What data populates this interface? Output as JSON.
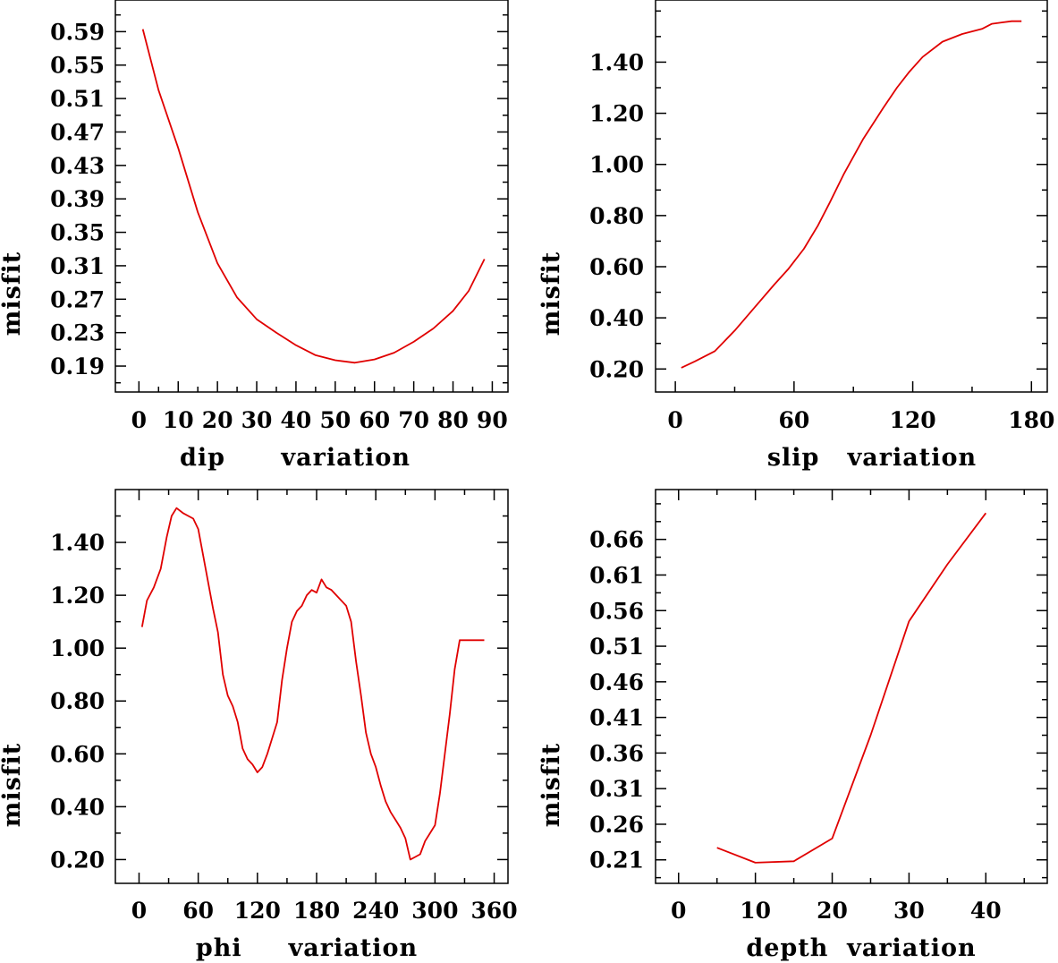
{
  "chart_data": [
    {
      "type": "line",
      "xlabel": "dip      variation",
      "ylabel": "misfit",
      "xlim": [
        -6,
        94
      ],
      "ylim": [
        0.159,
        0.63
      ],
      "xticks": [
        0,
        10,
        20,
        30,
        40,
        50,
        60,
        70,
        80,
        90
      ],
      "xtick_labels": [
        "0",
        "10",
        "20",
        "30",
        "40",
        "50",
        "60",
        "70",
        "80",
        "90"
      ],
      "yticks": [
        0.19,
        0.23,
        0.27,
        0.31,
        0.35,
        0.39,
        0.43,
        0.47,
        0.51,
        0.55,
        0.59
      ],
      "ytick_labels": [
        "0.19",
        "0.23",
        "0.27",
        "0.31",
        "0.35",
        "0.39",
        "0.43",
        "0.47",
        "0.51",
        "0.55",
        "0.59"
      ],
      "x": [
        1,
        5,
        10,
        15,
        20,
        25,
        30,
        35,
        40,
        45,
        50,
        55,
        60,
        65,
        70,
        75,
        80,
        84,
        88
      ],
      "y": [
        0.593,
        0.52,
        0.451,
        0.374,
        0.313,
        0.272,
        0.246,
        0.23,
        0.215,
        0.203,
        0.197,
        0.194,
        0.198,
        0.206,
        0.219,
        0.235,
        0.256,
        0.28,
        0.318
      ]
    },
    {
      "type": "line",
      "xlabel": "slip   variation",
      "ylabel": "misfit",
      "xlim": [
        -10,
        188
      ],
      "ylim": [
        0.11,
        1.65
      ],
      "xticks": [
        0,
        60,
        120,
        180
      ],
      "xtick_labels": [
        "0",
        "60",
        "120",
        "180"
      ],
      "yticks": [
        0.2,
        0.4,
        0.6,
        0.8,
        1.0,
        1.2,
        1.4
      ],
      "ytick_labels": [
        "0.20",
        "0.40",
        "0.60",
        "0.80",
        "1.00",
        "1.20",
        "1.40"
      ],
      "x": [
        3,
        10,
        20,
        30,
        40,
        50,
        57,
        65,
        72,
        78,
        85,
        95,
        105,
        112,
        118,
        125,
        135,
        145,
        155,
        160,
        165,
        170,
        175
      ],
      "y": [
        0.205,
        0.23,
        0.27,
        0.35,
        0.44,
        0.53,
        0.59,
        0.67,
        0.76,
        0.85,
        0.96,
        1.1,
        1.22,
        1.3,
        1.36,
        1.42,
        1.48,
        1.51,
        1.53,
        1.55,
        1.555,
        1.56,
        1.56
      ]
    },
    {
      "type": "line",
      "xlabel": "phi     variation",
      "ylabel": "misfit",
      "xlim": [
        -24,
        374
      ],
      "ylim": [
        0.11,
        1.6
      ],
      "xticks": [
        0,
        60,
        120,
        180,
        240,
        300,
        360
      ],
      "xtick_labels": [
        "0",
        "60",
        "120",
        "180",
        "240",
        "300",
        "360"
      ],
      "yticks": [
        0.2,
        0.4,
        0.6,
        0.8,
        1.0,
        1.2,
        1.4
      ],
      "ytick_labels": [
        "0.20",
        "0.40",
        "0.60",
        "0.80",
        "1.00",
        "1.20",
        "1.40"
      ],
      "x": [
        3,
        8,
        15,
        22,
        28,
        33,
        38,
        45,
        55,
        60,
        65,
        70,
        75,
        80,
        85,
        90,
        95,
        100,
        105,
        110,
        115,
        120,
        125,
        130,
        135,
        140,
        145,
        150,
        155,
        160,
        165,
        170,
        175,
        180,
        185,
        190,
        195,
        200,
        205,
        210,
        215,
        220,
        225,
        230,
        235,
        240,
        245,
        250,
        255,
        260,
        265,
        270,
        275,
        280,
        285,
        290,
        295,
        300,
        305,
        310,
        315,
        320,
        325,
        330,
        335,
        340,
        345,
        350
      ],
      "y": [
        1.08,
        1.18,
        1.23,
        1.3,
        1.42,
        1.5,
        1.53,
        1.51,
        1.49,
        1.45,
        1.35,
        1.25,
        1.15,
        1.06,
        0.9,
        0.82,
        0.78,
        0.72,
        0.62,
        0.58,
        0.56,
        0.53,
        0.55,
        0.6,
        0.66,
        0.72,
        0.88,
        1.0,
        1.1,
        1.14,
        1.16,
        1.2,
        1.22,
        1.21,
        1.26,
        1.23,
        1.22,
        1.2,
        1.18,
        1.16,
        1.1,
        0.95,
        0.82,
        0.68,
        0.6,
        0.55,
        0.48,
        0.42,
        0.38,
        0.35,
        0.32,
        0.28,
        0.2,
        0.21,
        0.22,
        0.27,
        0.3,
        0.33,
        0.45,
        0.6,
        0.75,
        0.92,
        1.03,
        1.03,
        1.03,
        1.03,
        1.03,
        1.03
      ],
      "x_trim": 350
    },
    {
      "type": "line",
      "xlabel": "depth  variation",
      "ylabel": "misfit",
      "xlim": [
        -3,
        48
      ],
      "ylim": [
        0.177,
        0.73
      ],
      "xticks": [
        0,
        10,
        20,
        30,
        40
      ],
      "xtick_labels": [
        "0",
        "10",
        "20",
        "30",
        "40"
      ],
      "yticks": [
        0.21,
        0.26,
        0.31,
        0.36,
        0.41,
        0.46,
        0.51,
        0.56,
        0.61,
        0.66
      ],
      "ytick_labels": [
        "0.21",
        "0.26",
        "0.31",
        "0.36",
        "0.41",
        "0.46",
        "0.51",
        "0.56",
        "0.61",
        "0.66"
      ],
      "x": [
        5,
        10,
        15,
        20,
        25,
        30,
        35,
        40
      ],
      "y": [
        0.227,
        0.206,
        0.208,
        0.24,
        0.385,
        0.545,
        0.625,
        0.697
      ]
    }
  ]
}
